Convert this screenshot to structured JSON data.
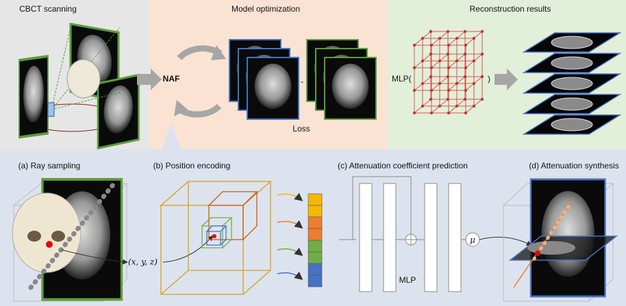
{
  "top": {
    "scanning": "CBCT scanning",
    "optimization": "Model optimization",
    "reconstruction": "Reconstruction results",
    "naf": "NAF",
    "minus": "-",
    "loss": "Loss",
    "mlp_open": "MLP(",
    "mlp_close": ")"
  },
  "bottom": {
    "a": "(a) Ray sampling",
    "b": "(b) Position encoding",
    "c": "(c) Attenuation coefficient prediction",
    "d": "(d) Attenuation synthesis",
    "coords": "(x, y, z)",
    "mlp": "MLP",
    "mu": "μ"
  }
}
